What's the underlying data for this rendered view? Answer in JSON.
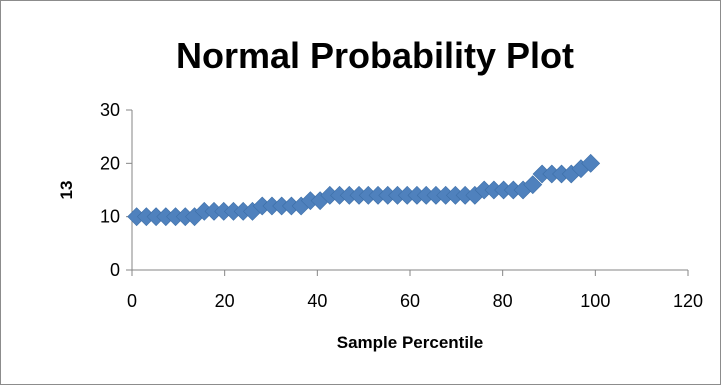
{
  "chart_data": {
    "type": "scatter",
    "title": "Normal Probability Plot",
    "xlabel": "Sample Percentile",
    "ylabel": "13",
    "xlim": [
      0,
      120
    ],
    "ylim": [
      0,
      30
    ],
    "x_ticks": [
      0,
      20,
      40,
      60,
      80,
      100,
      120
    ],
    "y_ticks": [
      0,
      10,
      20,
      30
    ],
    "grid": false,
    "legend": "none",
    "marker": "diamond",
    "marker_color": "#4f81bd",
    "series": [
      {
        "x": [
          1.0,
          3.1,
          5.2,
          7.3,
          9.4,
          11.5,
          13.5,
          15.6,
          17.7,
          19.8,
          21.9,
          24.0,
          26.0,
          28.1,
          30.2,
          32.3,
          34.4,
          36.5,
          38.5,
          40.6,
          42.7,
          44.8,
          46.9,
          49.0,
          51.0,
          53.1,
          55.2,
          57.3,
          59.4,
          61.5,
          63.5,
          65.6,
          67.7,
          69.8,
          71.9,
          74.0,
          76.0,
          78.1,
          80.2,
          82.3,
          84.4,
          86.5,
          88.5,
          90.6,
          92.7,
          94.8,
          96.9,
          99.0
        ],
        "values": [
          10,
          10,
          10,
          10,
          10,
          10,
          10,
          11,
          11,
          11,
          11,
          11,
          11,
          12,
          12,
          12,
          12,
          12,
          13,
          13,
          14,
          14,
          14,
          14,
          14,
          14,
          14,
          14,
          14,
          14,
          14,
          14,
          14,
          14,
          14,
          14,
          15,
          15,
          15,
          15,
          15,
          16,
          18,
          18,
          18,
          18,
          19,
          20
        ]
      }
    ]
  }
}
